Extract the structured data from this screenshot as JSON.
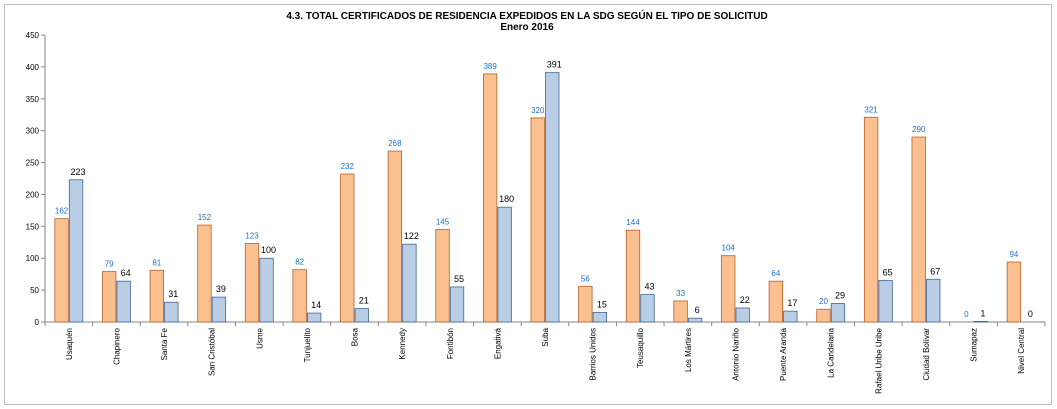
{
  "chart_data": {
    "type": "bar",
    "title": "4.3. TOTAL CERTIFICADOS DE RESIDENCIA EXPEDIDOS EN LA SDG SEGÚN EL TIPO DE SOLICITUD",
    "subtitle": "Enero  2016",
    "categories": [
      "Usaquén",
      "Chapinero",
      "Santa Fe",
      "San Cristóbal",
      "Usme",
      "Tunjuelito",
      "Bosa",
      "Kennedy",
      "Fontibón",
      "Engativá",
      "Suba",
      "Barrios Unidos",
      "Teusaquillo",
      "Los Mártires",
      "Antonio Nariño",
      "Puente Aranda",
      "La Candelaria",
      "Rafael Uribe Uribe",
      "Ciudad Bolívar",
      "Sumapaz",
      "Nivel Central"
    ],
    "series": [
      {
        "values": [
          162,
          79,
          81,
          152,
          123,
          82,
          232,
          268,
          145,
          389,
          320,
          56,
          144,
          33,
          104,
          64,
          20,
          321,
          290,
          0,
          94
        ]
      },
      {
        "values": [
          223,
          64,
          31,
          39,
          100,
          14,
          21,
          122,
          55,
          180,
          391,
          15,
          43,
          6,
          22,
          17,
          29,
          65,
          67,
          1,
          0
        ]
      }
    ],
    "ylim": [
      0,
      450
    ],
    "yticks": [
      0,
      50,
      100,
      150,
      200,
      250,
      300,
      350,
      400,
      450
    ],
    "grid": false,
    "legend": "none"
  },
  "colors": {
    "series_a_fill": "#fac090",
    "series_a_stroke": "#b8602a",
    "series_b_fill": "#b9cde5",
    "series_b_stroke": "#3e6796",
    "series_a_label": "#1f6fc5",
    "series_b_label": "#000000"
  }
}
